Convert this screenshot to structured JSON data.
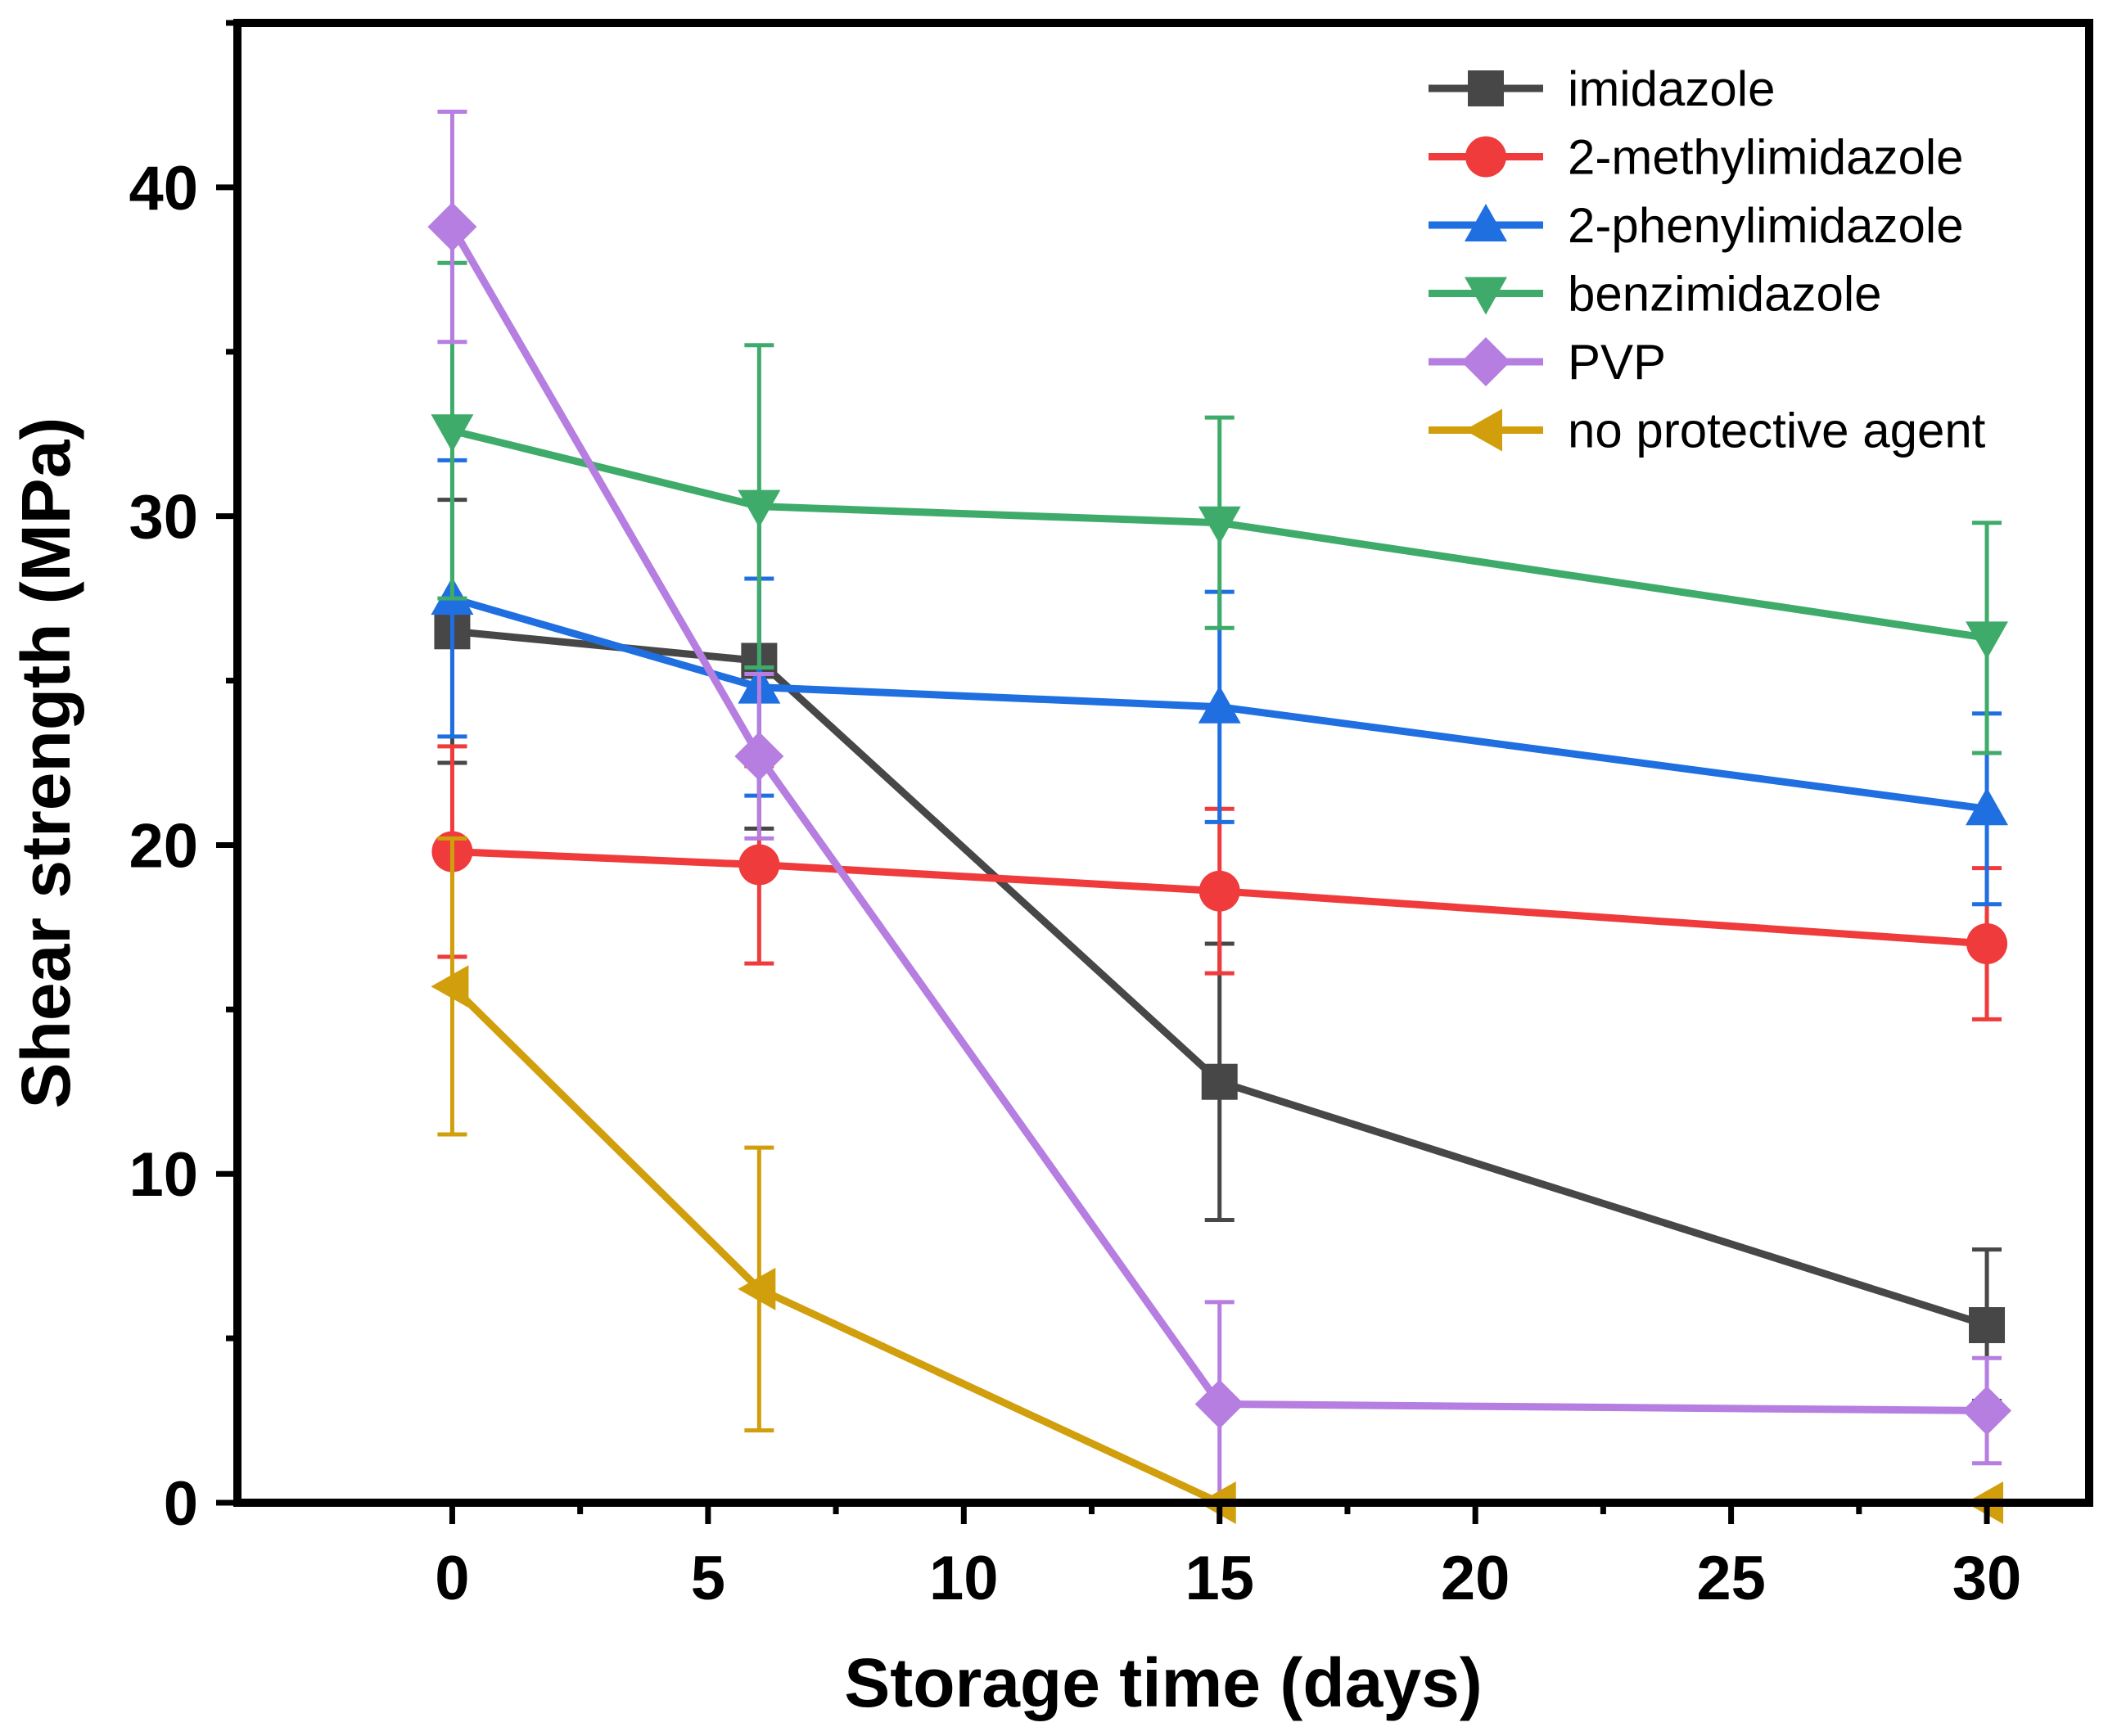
{
  "chart_data": {
    "type": "line",
    "title": "",
    "xlabel": "Storage time (days)",
    "ylabel": "Shear strength (MPa)",
    "xlim": [
      -4.2,
      32
    ],
    "ylim": [
      0,
      45
    ],
    "xticks": [
      0,
      5,
      10,
      15,
      20,
      25,
      30
    ],
    "yticks": [
      0,
      10,
      20,
      30,
      40
    ],
    "x": [
      0,
      6,
      15,
      30
    ],
    "legend_position": "top-right",
    "series": [
      {
        "name": "imidazole",
        "color": "#474747",
        "marker": "square",
        "values": [
          26.5,
          25.6,
          12.8,
          5.4
        ],
        "errors": [
          4.0,
          5.1,
          4.2,
          2.3
        ]
      },
      {
        "name": "2-methylimidazole",
        "color": "#ef3b3b",
        "marker": "circle",
        "values": [
          19.8,
          19.4,
          18.6,
          17.0
        ],
        "errors": [
          3.2,
          3.0,
          2.5,
          2.3
        ]
      },
      {
        "name": "2-phenylimidazole",
        "color": "#1f6fe0",
        "marker": "triangle-up",
        "values": [
          27.5,
          24.8,
          24.2,
          21.1
        ],
        "errors": [
          4.2,
          3.3,
          3.5,
          2.9
        ]
      },
      {
        "name": "benzimidazole",
        "color": "#3fab6a",
        "marker": "triangle-down",
        "values": [
          32.6,
          30.3,
          29.8,
          26.3
        ],
        "errors": [
          5.1,
          4.9,
          3.2,
          3.5
        ]
      },
      {
        "name": "PVP",
        "color": "#b57ee0",
        "marker": "diamond",
        "values": [
          38.8,
          22.7,
          3.0,
          2.8
        ],
        "errors": [
          3.5,
          2.5,
          3.1,
          1.6
        ]
      },
      {
        "name": "no protective agent",
        "color": "#d19e0c",
        "marker": "triangle-left",
        "values": [
          15.7,
          6.5,
          0,
          0
        ],
        "errors": [
          4.5,
          4.3,
          0,
          0
        ]
      }
    ]
  }
}
